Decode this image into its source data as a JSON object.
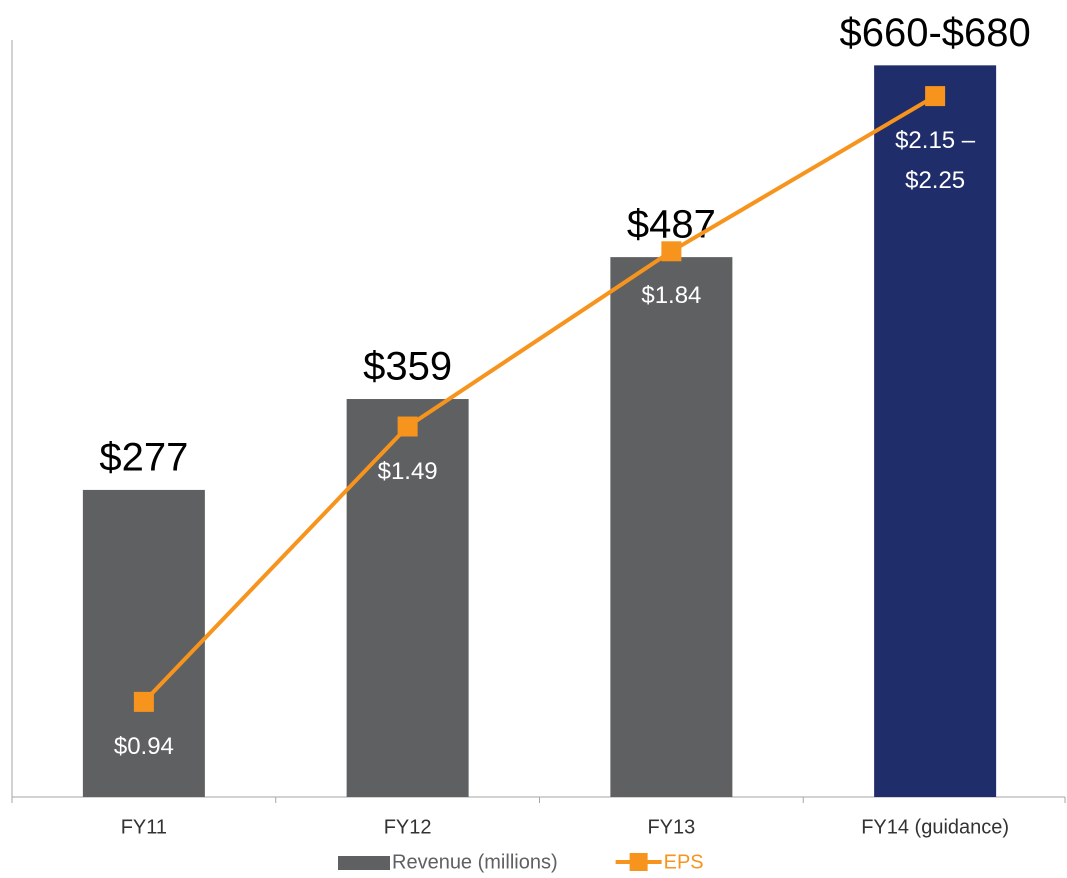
{
  "chart_data": {
    "type": "bar",
    "categories": [
      "FY11",
      "FY12",
      "FY13",
      "FY14 (guidance)"
    ],
    "series": [
      {
        "name": "Revenue (millions)",
        "type": "bar",
        "color": "#5f6062",
        "colors": [
          "#5f6062",
          "#5f6062",
          "#5f6062",
          "#1f2d6b"
        ],
        "values": [
          277,
          359,
          487,
          660
        ],
        "value_labels": [
          "$277",
          "$359",
          "$487",
          "$660-$680"
        ]
      },
      {
        "name": "EPS",
        "type": "line",
        "axis": "y2",
        "color": "#f7941d",
        "values": [
          0.94,
          1.49,
          1.84,
          2.15
        ],
        "value_labels": [
          "$0.94",
          "$1.49",
          "$1.84",
          "$2.15 – $2.25"
        ]
      }
    ],
    "ylim": [
      0,
      700
    ],
    "y2lim": [
      0.75,
      2.3
    ]
  }
}
